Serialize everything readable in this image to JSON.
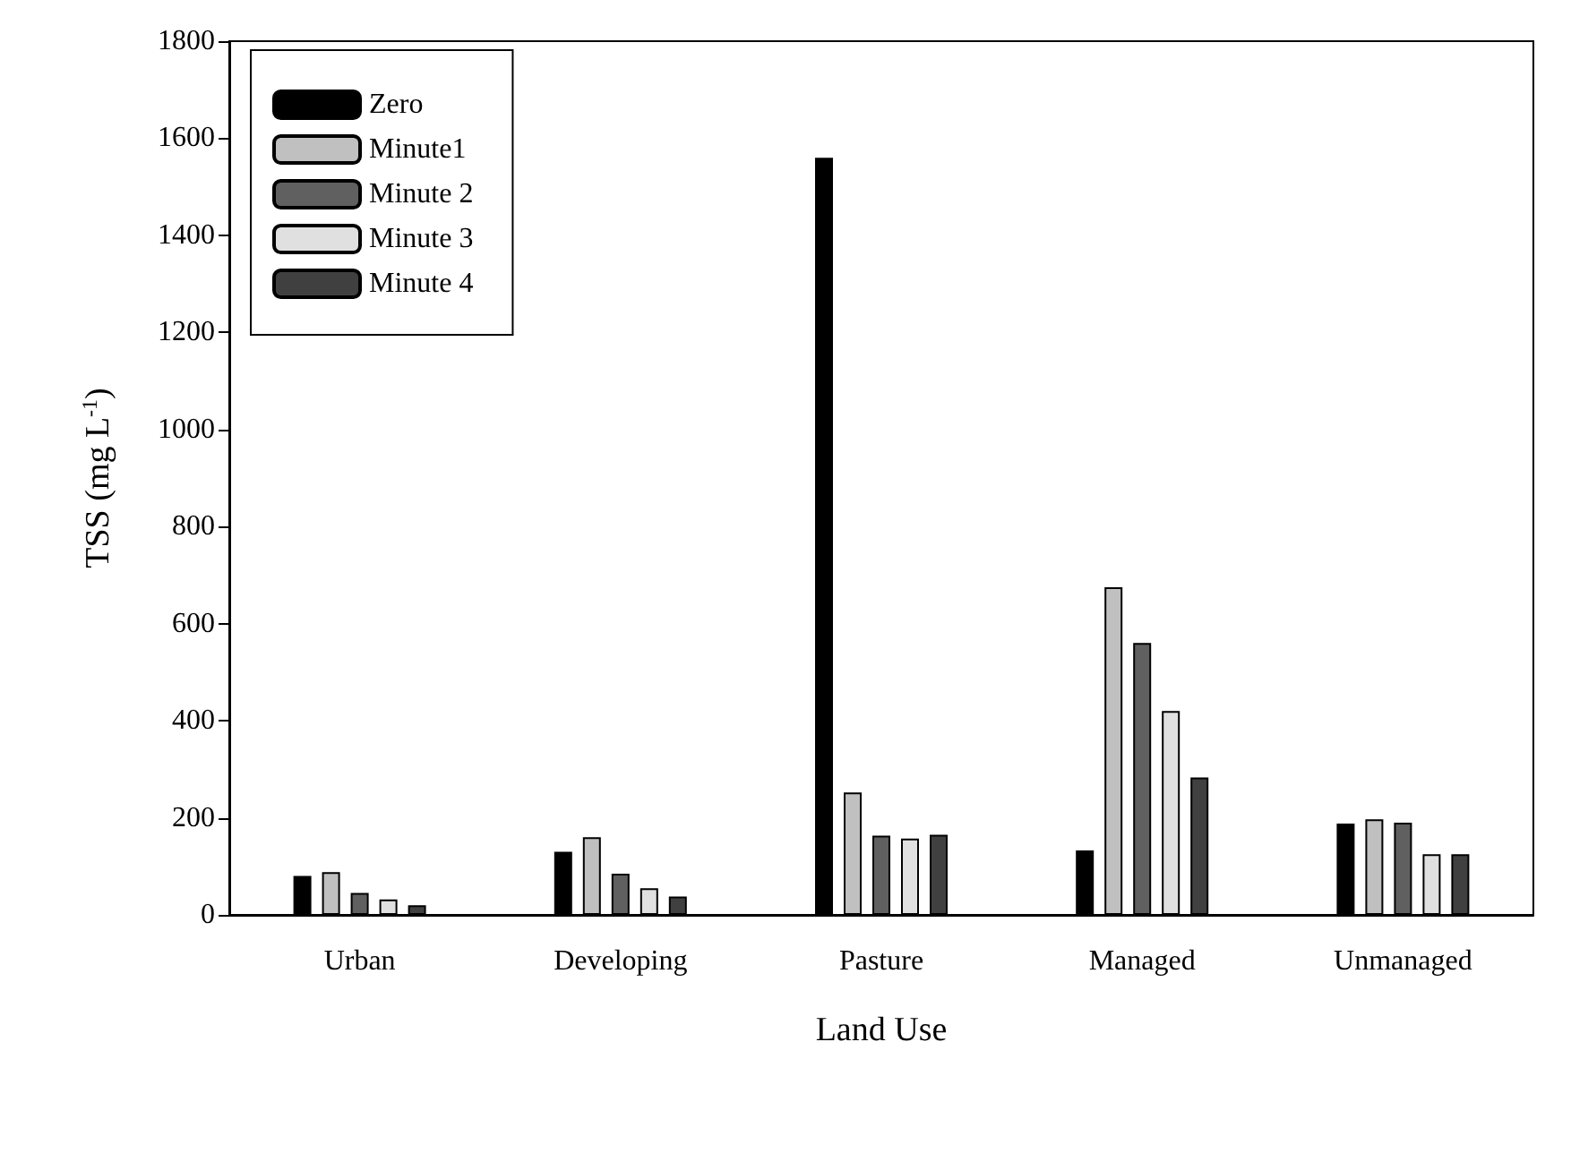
{
  "chart_data": {
    "type": "bar",
    "xlabel": "Land Use",
    "ylabel": "TSS (mg L$^{-1}$)",
    "categories": [
      "Urban",
      "Developing",
      "Pasture",
      "Managed",
      "Unmanaged"
    ],
    "series": [
      {
        "name": "Zero",
        "color": "#000000",
        "values": [
          80,
          130,
          1560,
          133,
          188
        ]
      },
      {
        "name": "Minute1",
        "color": "#c0c0c0",
        "values": [
          88,
          160,
          252,
          675,
          197
        ]
      },
      {
        "name": "Minute 2",
        "color": "#606060",
        "values": [
          45,
          85,
          163,
          560,
          190
        ]
      },
      {
        "name": "Minute 3",
        "color": "#e0e0e0",
        "values": [
          32,
          55,
          157,
          420,
          125
        ]
      },
      {
        "name": "Minute 4",
        "color": "#404040",
        "values": [
          20,
          38,
          165,
          283,
          125
        ]
      }
    ],
    "ylim": [
      0,
      1800
    ],
    "yticks": [
      0,
      200,
      400,
      600,
      800,
      1000,
      1200,
      1400,
      1600,
      1800
    ],
    "grid": false,
    "legend": "top left"
  }
}
